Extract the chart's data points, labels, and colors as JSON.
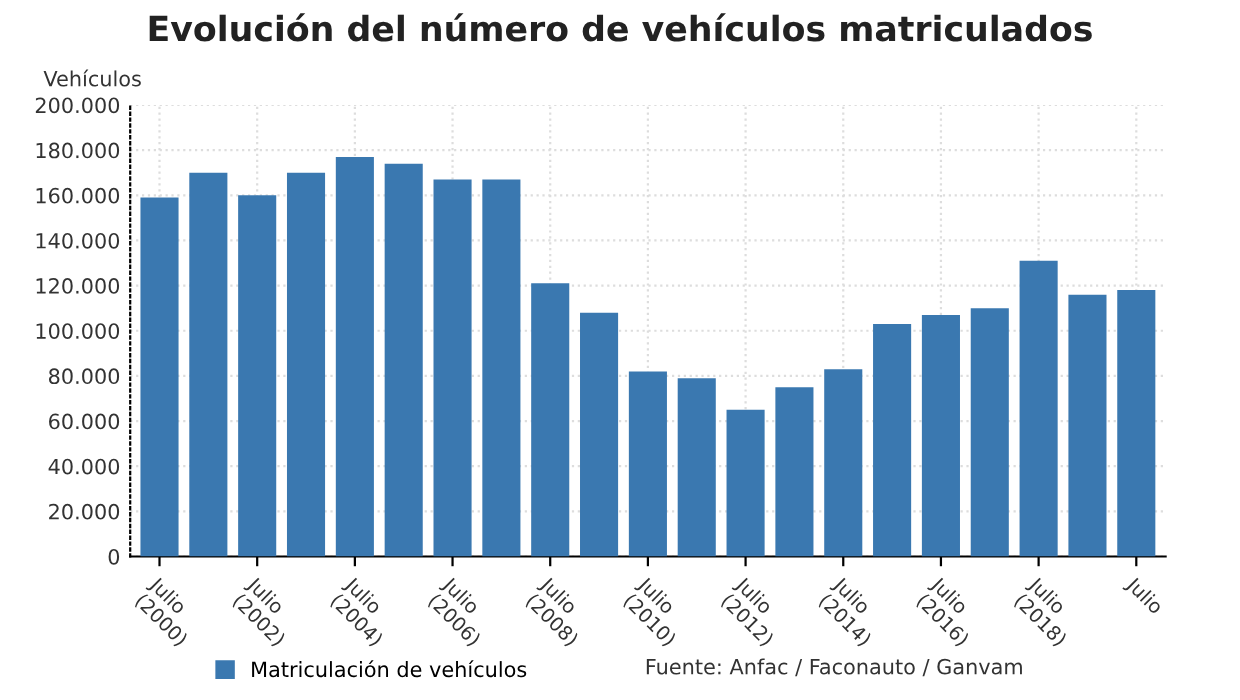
{
  "chart_data": {
    "type": "bar",
    "title": "Evolución del número de vehículos matriculados",
    "ylabel": "Vehículos",
    "categories": [
      "Julio\n(2000)",
      null,
      "Julio\n(2002)",
      null,
      "Julio\n(2004)",
      null,
      "Julio\n(2006)",
      null,
      "Julio\n(2008)",
      null,
      "Julio\n(2010)",
      null,
      "Julio\n(2012)",
      null,
      "Julio\n(2014)",
      null,
      "Julio\n(2016)",
      null,
      "Julio\n(2018)",
      null,
      "Julio"
    ],
    "series": [
      {
        "name": "Matriculación de vehículos",
        "color": "#3a78b0",
        "values": [
          159000,
          170000,
          160000,
          170000,
          177000,
          174000,
          167000,
          167000,
          121000,
          108000,
          82000,
          79000,
          65000,
          75000,
          83000,
          103000,
          107000,
          110000,
          131000,
          116000,
          118000
        ]
      }
    ],
    "ylim": [
      0,
      200000
    ],
    "yticks": [
      0,
      {
        "value": 20000,
        "label": "20.000"
      },
      {
        "value": 40000,
        "label": "40.000"
      },
      {
        "value": 60000,
        "label": "60.000"
      },
      {
        "value": 80000,
        "label": "80.000"
      },
      {
        "value": 100000,
        "label": "100.000"
      },
      {
        "value": 120000,
        "label": "120.000"
      },
      {
        "value": 140000,
        "label": "140.000"
      },
      {
        "value": 160000,
        "label": "160.000"
      },
      {
        "value": 180000,
        "label": "180.000"
      },
      {
        "value": 200000,
        "label": "200.000"
      }
    ],
    "grid": true,
    "legend": "bottom",
    "annotations": [
      "Fuente: Anfac / Faconauto / Ganvam"
    ]
  }
}
